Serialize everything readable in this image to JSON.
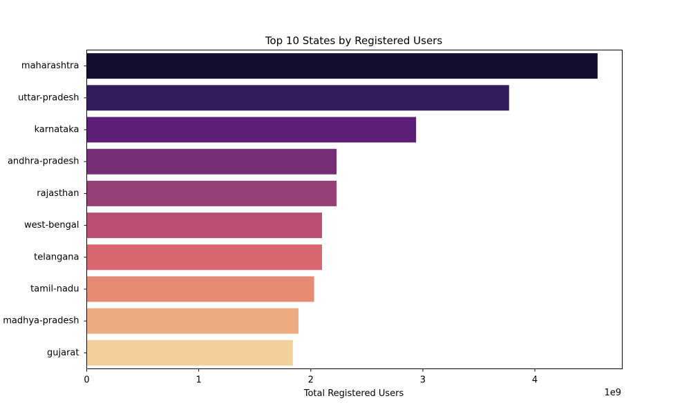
{
  "chart_data": {
    "type": "bar",
    "orientation": "horizontal",
    "title": "Top 10 States by Registered Users",
    "xlabel": "Total Registered Users",
    "ylabel": "",
    "x_scale_label": "1e9",
    "xlim": [
      0,
      4.78
    ],
    "xticks": [
      0,
      1,
      2,
      3,
      4
    ],
    "xtick_labels": [
      "0",
      "1",
      "2",
      "3",
      "4"
    ],
    "grid": false,
    "categories": [
      "maharashtra",
      "uttar-pradesh",
      "karnataka",
      "andhra-pradesh",
      "rajasthan",
      "west-bengal",
      "telangana",
      "tamil-nadu",
      "madhya-pradesh",
      "gujarat"
    ],
    "values": [
      4.56,
      3.77,
      2.94,
      2.23,
      2.23,
      2.1,
      2.1,
      2.03,
      1.89,
      1.84
    ],
    "colors": [
      "#140f2e",
      "#341c5c",
      "#5a1f74",
      "#762e77",
      "#973f77",
      "#b94f74",
      "#d7666f",
      "#e68b73",
      "#ecab83",
      "#f1d09d"
    ]
  }
}
